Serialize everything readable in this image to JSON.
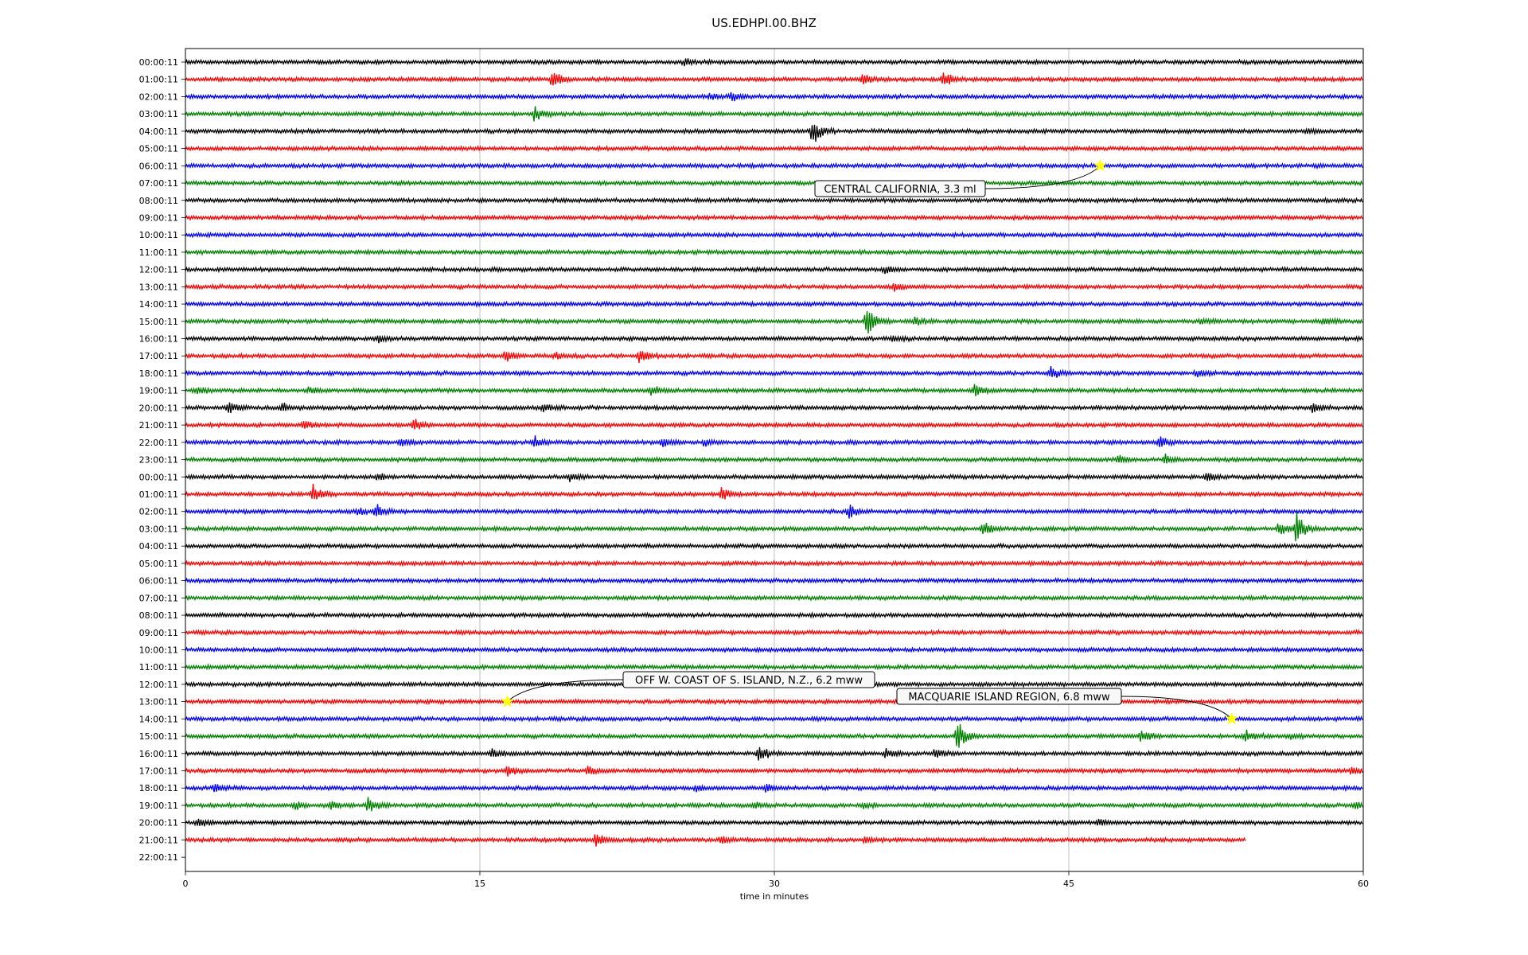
{
  "chart_data": {
    "type": "line",
    "title": "US.EDHPI.00.BHZ",
    "xlabel": "time in minutes",
    "ylabel": "",
    "xlim": [
      0,
      60
    ],
    "x_ticks": [
      0,
      15,
      30,
      45,
      60
    ],
    "grid": "vertical lines at x ticks",
    "colors": [
      "#000000",
      "#ff0000",
      "#0000ff",
      "#008000"
    ],
    "rows": [
      "00:00:11",
      "01:00:11",
      "02:00:11",
      "03:00:11",
      "04:00:11",
      "05:00:11",
      "06:00:11",
      "07:00:11",
      "08:00:11",
      "09:00:11",
      "10:00:11",
      "11:00:11",
      "12:00:11",
      "13:00:11",
      "14:00:11",
      "15:00:11",
      "16:00:11",
      "17:00:11",
      "18:00:11",
      "19:00:11",
      "20:00:11",
      "21:00:11",
      "22:00:11",
      "23:00:11",
      "00:00:11",
      "01:00:11",
      "02:00:11",
      "03:00:11",
      "04:00:11",
      "05:00:11",
      "06:00:11",
      "07:00:11",
      "08:00:11",
      "09:00:11",
      "10:00:11",
      "11:00:11",
      "12:00:11",
      "13:00:11",
      "14:00:11",
      "15:00:11",
      "16:00:11",
      "17:00:11",
      "18:00:11",
      "19:00:11",
      "20:00:11",
      "21:00:11",
      "22:00:11"
    ],
    "last_row_end_minute": 54,
    "bursts": [
      {
        "row": 0,
        "minute": 25.4,
        "amp": 0.35
      },
      {
        "row": 1,
        "minute": 18.7,
        "amp": 0.9
      },
      {
        "row": 1,
        "minute": 34.5,
        "amp": 0.7
      },
      {
        "row": 1,
        "minute": 38.6,
        "amp": 0.8
      },
      {
        "row": 2,
        "minute": 26.7,
        "amp": 0.3
      },
      {
        "row": 2,
        "minute": 27.8,
        "amp": 0.5
      },
      {
        "row": 3,
        "minute": 17.8,
        "amp": 0.8
      },
      {
        "row": 4,
        "minute": 31.9,
        "amp": 1.6
      },
      {
        "row": 4,
        "minute": 57.2,
        "amp": 0.3
      },
      {
        "row": 12,
        "minute": 35.6,
        "amp": 0.4
      },
      {
        "row": 13,
        "minute": 36.1,
        "amp": 0.3
      },
      {
        "row": 15,
        "minute": 34.7,
        "amp": 1.9
      },
      {
        "row": 15,
        "minute": 37.2,
        "amp": 0.5
      },
      {
        "row": 15,
        "minute": 51.7,
        "amp": 0.35
      },
      {
        "row": 15,
        "minute": 58.0,
        "amp": 0.3
      },
      {
        "row": 16,
        "minute": 9.8,
        "amp": 0.4
      },
      {
        "row": 16,
        "minute": 36.0,
        "amp": 0.3
      },
      {
        "row": 17,
        "minute": 16.3,
        "amp": 0.5
      },
      {
        "row": 17,
        "minute": 18.8,
        "amp": 0.4
      },
      {
        "row": 17,
        "minute": 23.1,
        "amp": 0.7
      },
      {
        "row": 18,
        "minute": 44.1,
        "amp": 0.6
      },
      {
        "row": 18,
        "minute": 51.5,
        "amp": 0.4
      },
      {
        "row": 19,
        "minute": 0.6,
        "amp": 0.4
      },
      {
        "row": 19,
        "minute": 6.3,
        "amp": 0.4
      },
      {
        "row": 19,
        "minute": 23.7,
        "amp": 0.4
      },
      {
        "row": 19,
        "minute": 40.2,
        "amp": 0.6
      },
      {
        "row": 20,
        "minute": 2.2,
        "amp": 0.6
      },
      {
        "row": 20,
        "minute": 4.9,
        "amp": 0.4
      },
      {
        "row": 20,
        "minute": 18.2,
        "amp": 0.4
      },
      {
        "row": 20,
        "minute": 57.4,
        "amp": 0.6
      },
      {
        "row": 21,
        "minute": 6.0,
        "amp": 0.4
      },
      {
        "row": 21,
        "minute": 11.6,
        "amp": 0.6
      },
      {
        "row": 22,
        "minute": 11.0,
        "amp": 0.4
      },
      {
        "row": 22,
        "minute": 17.8,
        "amp": 0.5
      },
      {
        "row": 22,
        "minute": 24.3,
        "amp": 0.5
      },
      {
        "row": 22,
        "minute": 26.4,
        "amp": 0.3
      },
      {
        "row": 22,
        "minute": 49.6,
        "amp": 0.6
      },
      {
        "row": 23,
        "minute": 47.5,
        "amp": 0.4
      },
      {
        "row": 23,
        "minute": 49.9,
        "amp": 0.4
      },
      {
        "row": 24,
        "minute": 9.8,
        "amp": 0.3
      },
      {
        "row": 24,
        "minute": 19.6,
        "amp": 0.4
      },
      {
        "row": 24,
        "minute": 52.0,
        "amp": 0.5
      },
      {
        "row": 25,
        "minute": 6.5,
        "amp": 0.9
      },
      {
        "row": 25,
        "minute": 27.3,
        "amp": 0.6
      },
      {
        "row": 26,
        "minute": 8.8,
        "amp": 0.4
      },
      {
        "row": 26,
        "minute": 9.7,
        "amp": 0.6
      },
      {
        "row": 26,
        "minute": 33.8,
        "amp": 0.6
      },
      {
        "row": 27,
        "minute": 40.6,
        "amp": 0.7
      },
      {
        "row": 27,
        "minute": 55.7,
        "amp": 0.7
      },
      {
        "row": 27,
        "minute": 56.6,
        "amp": 1.4
      },
      {
        "row": 39,
        "minute": 39.3,
        "amp": 1.4
      },
      {
        "row": 39,
        "minute": 48.7,
        "amp": 0.7
      },
      {
        "row": 39,
        "minute": 54.0,
        "amp": 0.6
      },
      {
        "row": 39,
        "minute": 56.3,
        "amp": 0.3
      },
      {
        "row": 40,
        "minute": 15.6,
        "amp": 0.4
      },
      {
        "row": 40,
        "minute": 29.2,
        "amp": 0.8
      },
      {
        "row": 40,
        "minute": 35.7,
        "amp": 0.5
      },
      {
        "row": 40,
        "minute": 38.2,
        "amp": 0.4
      },
      {
        "row": 41,
        "minute": 16.4,
        "amp": 0.4
      },
      {
        "row": 41,
        "minute": 20.5,
        "amp": 0.4
      },
      {
        "row": 41,
        "minute": 59.4,
        "amp": 0.4
      },
      {
        "row": 42,
        "minute": 1.5,
        "amp": 0.5
      },
      {
        "row": 42,
        "minute": 26.0,
        "amp": 0.4
      },
      {
        "row": 42,
        "minute": 29.6,
        "amp": 0.3
      },
      {
        "row": 43,
        "minute": 5.6,
        "amp": 0.4
      },
      {
        "row": 43,
        "minute": 7.4,
        "amp": 0.4
      },
      {
        "row": 43,
        "minute": 9.3,
        "amp": 0.8
      },
      {
        "row": 43,
        "minute": 29.0,
        "amp": 0.3
      },
      {
        "row": 43,
        "minute": 34.6,
        "amp": 0.3
      },
      {
        "row": 43,
        "minute": 59.6,
        "amp": 0.4
      },
      {
        "row": 44,
        "minute": 0.6,
        "amp": 0.5
      },
      {
        "row": 44,
        "minute": 46.5,
        "amp": 0.3
      },
      {
        "row": 45,
        "minute": 20.9,
        "amp": 0.7
      },
      {
        "row": 45,
        "minute": 27.3,
        "amp": 0.3
      },
      {
        "row": 45,
        "minute": 34.6,
        "amp": 0.3
      }
    ],
    "events": [
      {
        "label": "CENTRAL CALIFORNIA, 3.3 ml",
        "row": 6,
        "minute": 46.6
      },
      {
        "label": "OFF W. COAST OF S. ISLAND, N.Z., 6.2 mww",
        "row": 37,
        "minute": 16.4
      },
      {
        "label": "MACQUARIE ISLAND REGION, 6.8 mww",
        "row": 38,
        "minute": 53.3
      }
    ],
    "marker_color": "#ffff00"
  }
}
